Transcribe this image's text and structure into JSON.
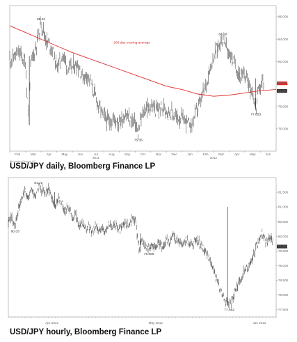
{
  "chart_data": [
    {
      "type": "line",
      "caption": "USD/JPY daily, Bloomberg Finance LP",
      "ylim": [
        74.0,
        87.0
      ],
      "y_ticks": [
        {
          "label": "86.000",
          "value": 86.0
        },
        {
          "label": "84.000",
          "value": 84.0
        },
        {
          "label": "82.000",
          "value": 82.0
        },
        {
          "label": "80.000",
          "value": 80.0
        },
        {
          "label": "78.000",
          "value": 78.0
        },
        {
          "label": "76.000",
          "value": 76.0
        }
      ],
      "x_ticks": [
        "Feb",
        "Mar",
        "Apr",
        "May",
        "Jun",
        "Jul",
        "Aug",
        "Sep",
        "Oct",
        "Nov",
        "Dec",
        "Jan",
        "Feb",
        "Mar",
        "Apr",
        "May",
        "Jun"
      ],
      "year_labels": [
        {
          "label": "2011",
          "month_index": 5.5
        },
        {
          "label": "2012",
          "month_index": 13
        }
      ],
      "price_path": [
        [
          0,
          82.2
        ],
        [
          0.6,
          82.8
        ],
        [
          1.0,
          81.9
        ],
        [
          1.25,
          76.3
        ],
        [
          1.3,
          81.5
        ],
        [
          1.6,
          83.0
        ],
        [
          1.9,
          84.7
        ],
        [
          2.0,
          85.52
        ],
        [
          2.3,
          84.0
        ],
        [
          2.7,
          83.2
        ],
        [
          3.0,
          81.5
        ],
        [
          3.4,
          82.6
        ],
        [
          3.8,
          81.3
        ],
        [
          4.3,
          81.8
        ],
        [
          4.7,
          80.6
        ],
        [
          5.0,
          80.9
        ],
        [
          5.3,
          79.5
        ],
        [
          5.7,
          78.0
        ],
        [
          6.0,
          77.2
        ],
        [
          6.3,
          76.6
        ],
        [
          6.7,
          76.9
        ],
        [
          7.0,
          76.6
        ],
        [
          7.4,
          77.3
        ],
        [
          7.7,
          76.8
        ],
        [
          8.0,
          76.6
        ],
        [
          8.2,
          75.35
        ],
        [
          8.4,
          77.0
        ],
        [
          8.7,
          77.8
        ],
        [
          9.0,
          78.0
        ],
        [
          9.4,
          77.6
        ],
        [
          9.8,
          77.9
        ],
        [
          10.2,
          77.6
        ],
        [
          10.6,
          77.0
        ],
        [
          11.0,
          76.9
        ],
        [
          11.3,
          76.6
        ],
        [
          11.6,
          76.3
        ],
        [
          11.9,
          77.6
        ],
        [
          12.2,
          78.5
        ],
        [
          12.5,
          79.9
        ],
        [
          12.8,
          81.5
        ],
        [
          13.0,
          82.4
        ],
        [
          13.3,
          83.4
        ],
        [
          13.6,
          84.18
        ],
        [
          13.9,
          83.0
        ],
        [
          14.2,
          82.3
        ],
        [
          14.5,
          81.3
        ],
        [
          14.8,
          80.5
        ],
        [
          15.0,
          80.9
        ],
        [
          15.3,
          79.9
        ],
        [
          15.5,
          79.3
        ],
        [
          15.7,
          77.65
        ],
        [
          15.8,
          79.0
        ],
        [
          16.0,
          79.8
        ],
        [
          16.2,
          80.3
        ]
      ],
      "moving_average": {
        "label": "200 day moving average",
        "color": "#e22b2b",
        "path": [
          [
            0,
            85.2
          ],
          [
            1,
            84.6
          ],
          [
            2,
            84.0
          ],
          [
            3,
            83.4
          ],
          [
            4,
            82.8
          ],
          [
            5,
            82.3
          ],
          [
            6,
            81.8
          ],
          [
            7,
            81.3
          ],
          [
            8,
            80.8
          ],
          [
            9,
            80.3
          ],
          [
            10,
            79.8
          ],
          [
            11,
            79.5
          ],
          [
            12,
            79.1
          ],
          [
            13,
            78.9
          ],
          [
            14,
            79.0
          ],
          [
            15,
            79.2
          ],
          [
            16,
            79.4
          ],
          [
            17,
            79.5
          ]
        ]
      },
      "annotations": [
        {
          "text": "85.52",
          "x": 2.0,
          "y": 85.52
        },
        {
          "text": "75.35",
          "x": 8.2,
          "y": 75.35
        },
        {
          "text": "84.18",
          "x": 13.6,
          "y": 84.18
        },
        {
          "text": "77.653",
          "x": 15.7,
          "y": 77.65
        }
      ],
      "current_price_tags": [
        {
          "label": "79.900",
          "value": 79.9,
          "color": "#e22b2b"
        },
        {
          "label": "79.530",
          "value": 79.53,
          "color": "#333333"
        }
      ]
    },
    {
      "type": "line",
      "caption": "USD/JPY hourly, Bloomberg Finance LP",
      "ylim": [
        77.25,
        82.0
      ],
      "y_ticks": [
        {
          "label": "81.500",
          "value": 81.5
        },
        {
          "label": "81.000",
          "value": 81.0
        },
        {
          "label": "80.500",
          "value": 80.5
        },
        {
          "label": "80.000",
          "value": 80.0
        },
        {
          "label": "79.500",
          "value": 79.5
        },
        {
          "label": "79.000",
          "value": 79.0
        },
        {
          "label": "78.500",
          "value": 78.5
        },
        {
          "label": "78.000",
          "value": 78.0
        },
        {
          "label": "77.500",
          "value": 77.5
        }
      ],
      "month_labels": [
        {
          "label": "Apr 2012",
          "day_index": 13
        },
        {
          "label": "May 2012",
          "day_index": 44
        },
        {
          "label": "Jun 2012",
          "day_index": 75
        }
      ],
      "price_path": [
        [
          0,
          80.5
        ],
        [
          1,
          80.7
        ],
        [
          2,
          80.33
        ],
        [
          3,
          80.9
        ],
        [
          4,
          81.3
        ],
        [
          5,
          81.55
        ],
        [
          6,
          81.3
        ],
        [
          7,
          81.6
        ],
        [
          8,
          81.4
        ],
        [
          9,
          81.72
        ],
        [
          10,
          81.6
        ],
        [
          11,
          81.45
        ],
        [
          12,
          81.6
        ],
        [
          13,
          81.3
        ],
        [
          14,
          81.0
        ],
        [
          15,
          81.3
        ],
        [
          16,
          81.1
        ],
        [
          17,
          80.9
        ],
        [
          18,
          81.0
        ],
        [
          19,
          80.6
        ],
        [
          20,
          80.8
        ],
        [
          21,
          80.4
        ],
        [
          22,
          80.5
        ],
        [
          23,
          80.2
        ],
        [
          24,
          80.35
        ],
        [
          25,
          80.1
        ],
        [
          26,
          80.4
        ],
        [
          27,
          80.2
        ],
        [
          28,
          80.3
        ],
        [
          29,
          80.1
        ],
        [
          30,
          80.45
        ],
        [
          31,
          80.2
        ],
        [
          32,
          80.4
        ],
        [
          33,
          80.2
        ],
        [
          34,
          80.3
        ],
        [
          35,
          80.5
        ],
        [
          36,
          80.4
        ],
        [
          37,
          80.6
        ],
        [
          38,
          80.5
        ],
        [
          39,
          79.6
        ],
        [
          40,
          79.8
        ],
        [
          41,
          79.7
        ],
        [
          42,
          79.55
        ],
        [
          43,
          79.7
        ],
        [
          44,
          79.6
        ],
        [
          45,
          79.8
        ],
        [
          46,
          79.6
        ],
        [
          47,
          79.9
        ],
        [
          48,
          79.8
        ],
        [
          49,
          80.1
        ],
        [
          50,
          79.85
        ],
        [
          51,
          79.9
        ],
        [
          52,
          79.7
        ],
        [
          53,
          79.9
        ],
        [
          54,
          79.75
        ],
        [
          55,
          79.7
        ],
        [
          56,
          79.9
        ],
        [
          57,
          79.8
        ],
        [
          58,
          79.6
        ],
        [
          59,
          79.5
        ],
        [
          60,
          79.2
        ],
        [
          61,
          78.9
        ],
        [
          62,
          78.6
        ],
        [
          63,
          78.3
        ],
        [
          64,
          78.0
        ],
        [
          65,
          77.75
        ],
        [
          66,
          77.65
        ],
        [
          67,
          77.9
        ],
        [
          68,
          78.2
        ],
        [
          69,
          78.5
        ],
        [
          70,
          78.7
        ],
        [
          71,
          78.9
        ],
        [
          72,
          79.0
        ],
        [
          73,
          79.3
        ],
        [
          74,
          79.6
        ],
        [
          75,
          79.9
        ],
        [
          76,
          80.1
        ],
        [
          77,
          79.8
        ],
        [
          78,
          79.95
        ],
        [
          79,
          79.85
        ]
      ],
      "spikes": [
        {
          "x": 13.8,
          "high": 81.5,
          "low": 81.0
        },
        {
          "x": 39.5,
          "high": 80.1,
          "low": 79.45
        },
        {
          "x": 65.5,
          "high": 81.0,
          "low": 77.65
        }
      ],
      "annotations": [
        {
          "text": "81.72",
          "x": 9,
          "y": 81.72
        },
        {
          "text": "80.33",
          "x": 2,
          "y": 80.33
        },
        {
          "text": "79.569",
          "x": 42,
          "y": 79.55
        },
        {
          "text": "77.652",
          "x": 66,
          "y": 77.65
        }
      ],
      "current_price_tag": {
        "label": "79.650",
        "value": 79.65
      }
    }
  ]
}
